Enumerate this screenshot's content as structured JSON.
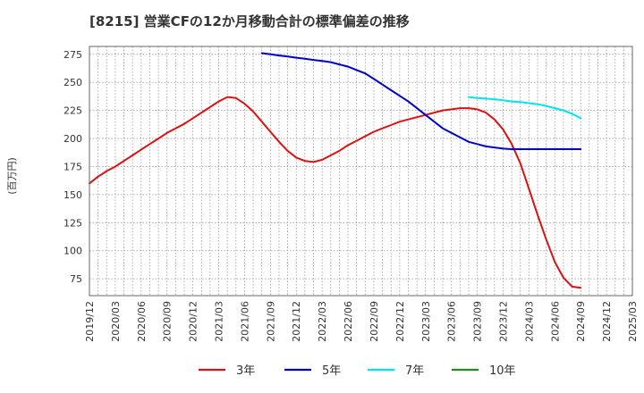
{
  "chart_data": {
    "type": "line",
    "title": "[8215]  営業CFの12か月移動合計の標準偏差の推移",
    "ylabel": "(百万円)",
    "xlabel": "",
    "ylim": [
      60,
      282
    ],
    "yticks": [
      75,
      100,
      125,
      150,
      175,
      200,
      225,
      250,
      275
    ],
    "xlim": [
      "2019-12",
      "2025-03"
    ],
    "xticks": [
      "2019/12",
      "2020/03",
      "2020/06",
      "2020/09",
      "2020/12",
      "2021/03",
      "2021/06",
      "2021/09",
      "2021/12",
      "2022/03",
      "2022/06",
      "2022/09",
      "2022/12",
      "2023/03",
      "2023/06",
      "2023/09",
      "2023/12",
      "2024/03",
      "2024/06",
      "2024/09",
      "2024/12",
      "2025/03"
    ],
    "grid": true,
    "legend_position": "bottom",
    "series": [
      {
        "name": "3年",
        "color": "#dd1111",
        "points": [
          [
            "2019-12",
            160
          ],
          [
            "2020-01",
            166
          ],
          [
            "2020-02",
            171
          ],
          [
            "2020-03",
            175
          ],
          [
            "2020-04",
            180
          ],
          [
            "2020-05",
            185
          ],
          [
            "2020-06",
            190
          ],
          [
            "2020-07",
            195
          ],
          [
            "2020-08",
            200
          ],
          [
            "2020-09",
            205
          ],
          [
            "2020-10",
            209
          ],
          [
            "2020-11",
            213
          ],
          [
            "2020-12",
            218
          ],
          [
            "2021-01",
            223
          ],
          [
            "2021-02",
            228
          ],
          [
            "2021-03",
            233
          ],
          [
            "2021-04",
            237
          ],
          [
            "2021-05",
            236
          ],
          [
            "2021-06",
            231
          ],
          [
            "2021-07",
            224
          ],
          [
            "2021-08",
            215
          ],
          [
            "2021-09",
            206
          ],
          [
            "2021-10",
            197
          ],
          [
            "2021-11",
            189
          ],
          [
            "2021-12",
            183
          ],
          [
            "2022-01",
            180
          ],
          [
            "2022-02",
            179
          ],
          [
            "2022-03",
            181
          ],
          [
            "2022-04",
            185
          ],
          [
            "2022-05",
            189
          ],
          [
            "2022-06",
            194
          ],
          [
            "2022-07",
            198
          ],
          [
            "2022-08",
            202
          ],
          [
            "2022-09",
            206
          ],
          [
            "2022-10",
            209
          ],
          [
            "2022-11",
            212
          ],
          [
            "2022-12",
            215
          ],
          [
            "2023-01",
            217
          ],
          [
            "2023-02",
            219
          ],
          [
            "2023-03",
            221
          ],
          [
            "2023-04",
            223
          ],
          [
            "2023-05",
            225
          ],
          [
            "2023-06",
            226
          ],
          [
            "2023-07",
            227
          ],
          [
            "2023-08",
            227
          ],
          [
            "2023-09",
            226
          ],
          [
            "2023-10",
            223
          ],
          [
            "2023-11",
            217
          ],
          [
            "2023-12",
            208
          ],
          [
            "2024-01",
            195
          ],
          [
            "2024-02",
            178
          ],
          [
            "2024-03",
            155
          ],
          [
            "2024-04",
            132
          ],
          [
            "2024-05",
            110
          ],
          [
            "2024-06",
            90
          ],
          [
            "2024-07",
            76
          ],
          [
            "2024-08",
            68
          ],
          [
            "2024-09",
            67
          ]
        ]
      },
      {
        "name": "5年",
        "color": "#0000cc",
        "points": [
          [
            "2021-08",
            276
          ],
          [
            "2021-09",
            275
          ],
          [
            "2021-10",
            274
          ],
          [
            "2021-11",
            273
          ],
          [
            "2021-12",
            272
          ],
          [
            "2022-01",
            271
          ],
          [
            "2022-02",
            270
          ],
          [
            "2022-03",
            269
          ],
          [
            "2022-04",
            268
          ],
          [
            "2022-05",
            266
          ],
          [
            "2022-06",
            264
          ],
          [
            "2022-07",
            261
          ],
          [
            "2022-08",
            258
          ],
          [
            "2022-09",
            253
          ],
          [
            "2022-10",
            248
          ],
          [
            "2022-11",
            243
          ],
          [
            "2022-12",
            238
          ],
          [
            "2023-01",
            233
          ],
          [
            "2023-02",
            227
          ],
          [
            "2023-03",
            221
          ],
          [
            "2023-04",
            215
          ],
          [
            "2023-05",
            209
          ],
          [
            "2023-06",
            205
          ],
          [
            "2023-07",
            201
          ],
          [
            "2023-08",
            197
          ],
          [
            "2023-09",
            195
          ],
          [
            "2023-10",
            193
          ],
          [
            "2023-11",
            192
          ],
          [
            "2023-12",
            191
          ],
          [
            "2024-01",
            190.5
          ],
          [
            "2024-02",
            190.5
          ],
          [
            "2024-03",
            190.5
          ],
          [
            "2024-04",
            190.5
          ],
          [
            "2024-05",
            190.5
          ],
          [
            "2024-06",
            190.5
          ],
          [
            "2024-07",
            190.5
          ],
          [
            "2024-08",
            190.5
          ],
          [
            "2024-09",
            190.5
          ]
        ]
      },
      {
        "name": "7年",
        "color": "#00e5ee",
        "points": [
          [
            "2023-08",
            237
          ],
          [
            "2023-09",
            236
          ],
          [
            "2023-10",
            235.5
          ],
          [
            "2023-11",
            235
          ],
          [
            "2023-12",
            234
          ],
          [
            "2024-01",
            233
          ],
          [
            "2024-02",
            232.5
          ],
          [
            "2024-03",
            231.5
          ],
          [
            "2024-04",
            230.5
          ],
          [
            "2024-05",
            229
          ],
          [
            "2024-06",
            227
          ],
          [
            "2024-07",
            225
          ],
          [
            "2024-08",
            222
          ],
          [
            "2024-09",
            218
          ]
        ]
      },
      {
        "name": "10年",
        "color": "#228b22",
        "points": []
      }
    ]
  }
}
